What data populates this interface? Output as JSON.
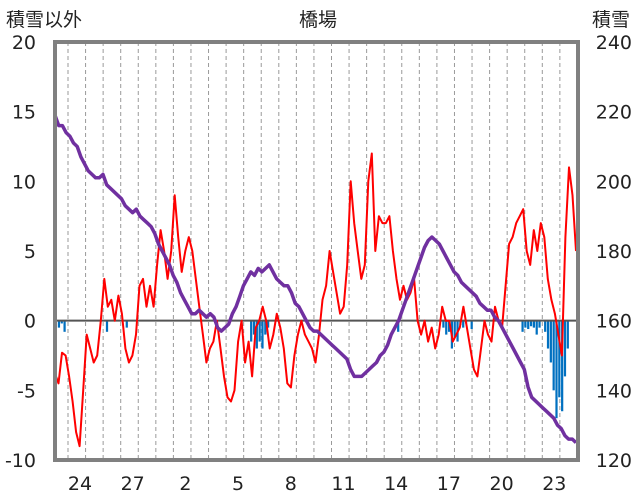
{
  "chart_data": {
    "type": "line",
    "title": "橋場",
    "ylabel_left": "積雪以外",
    "ylabel_right": "積雪",
    "ylim_left": [
      -10,
      20
    ],
    "ylim_right": [
      120,
      240
    ],
    "yticks_left": [
      "20",
      "15",
      "10",
      "5",
      "0",
      "-5",
      "-10"
    ],
    "yticks_right": [
      "240",
      "220",
      "200",
      "180",
      "160",
      "140",
      "120"
    ],
    "xticks": [
      "24",
      "27",
      "2",
      "5",
      "8",
      "11",
      "14",
      "17",
      "20",
      "23"
    ],
    "grid": "vertical-dashed",
    "colors": {
      "temperature": "#ff0000",
      "snow_depth": "#7030a0",
      "precipitation": "#0070c0",
      "frame": "#808080",
      "zero_line": "#555555"
    },
    "series": [
      {
        "key": "temperature",
        "axis": "left",
        "values": [
          -3.8,
          -4.5,
          -2.3,
          -2.5,
          -4.0,
          -5.8,
          -8.0,
          -9.0,
          -5.0,
          -1.0,
          -2.0,
          -3.0,
          -2.5,
          0.0,
          3.0,
          1.0,
          1.5,
          0.0,
          1.8,
          0.5,
          -2.0,
          -3.0,
          -2.5,
          -1.0,
          2.5,
          3.0,
          1.0,
          2.5,
          1.0,
          4.0,
          6.5,
          5.0,
          3.0,
          5.0,
          9.0,
          6.0,
          3.5,
          5.0,
          6.0,
          5.0,
          3.0,
          1.0,
          -1.0,
          -3.0,
          -2.0,
          -1.5,
          0.0,
          -2.0,
          -4.0,
          -5.5,
          -5.8,
          -5.0,
          -1.5,
          0.0,
          -3.0,
          -1.5,
          -4.0,
          -0.5,
          0.0,
          1.0,
          0.0,
          -2.0,
          -1.0,
          0.5,
          -0.5,
          -2.0,
          -4.5,
          -4.8,
          -2.5,
          -1.0,
          0.0,
          -1.0,
          -1.5,
          -2.0,
          -3.0,
          -1.0,
          1.5,
          2.5,
          5.0,
          3.5,
          2.0,
          0.5,
          1.0,
          4.0,
          10.0,
          7.0,
          5.0,
          3.0,
          4.0,
          10.0,
          12.0,
          5.0,
          7.5,
          7.0,
          7.0,
          7.5,
          5.0,
          3.0,
          1.5,
          2.5,
          1.5,
          2.0,
          3.0,
          0.0,
          -1.0,
          0.0,
          -1.5,
          -0.5,
          -2.0,
          -1.0,
          1.0,
          0.0,
          0.0,
          -1.5,
          -1.0,
          -0.5,
          1.0,
          -0.5,
          -2.0,
          -3.5,
          -4.0,
          -2.0,
          0.0,
          -1.0,
          -1.5,
          1.0,
          0.0,
          -0.5,
          2.5,
          5.5,
          6.0,
          7.0,
          7.5,
          8.0,
          5.0,
          4.0,
          6.5,
          5.0,
          7.0,
          6.0,
          3.0,
          1.5,
          0.5,
          -1.0,
          -2.5,
          6.0,
          11.0,
          9.0,
          5.0
        ],
        "x_start": 22.3,
        "x_end": 25.1
      },
      {
        "key": "snow_depth",
        "axis": "right",
        "values": [
          219,
          216,
          216,
          214,
          213,
          211,
          210,
          207,
          205,
          203,
          202,
          201,
          201,
          202,
          199,
          198,
          197,
          196,
          195,
          193,
          192,
          191,
          192,
          190,
          189,
          188,
          187,
          185,
          182,
          180,
          178,
          176,
          173,
          171,
          168,
          166,
          164,
          162,
          162,
          163,
          162,
          161,
          162,
          161,
          158,
          157,
          158,
          159,
          162,
          164,
          167,
          170,
          172,
          174,
          173,
          175,
          174,
          175,
          176,
          174,
          172,
          171,
          170,
          170,
          168,
          165,
          164,
          162,
          160,
          158,
          157,
          157,
          156,
          155,
          154,
          153,
          152,
          151,
          150,
          149,
          146,
          144,
          144,
          144,
          145,
          146,
          147,
          148,
          150,
          151,
          153,
          156,
          158,
          160,
          163,
          166,
          169,
          172,
          175,
          178,
          181,
          183,
          184,
          183,
          182,
          180,
          178,
          176,
          174,
          173,
          171,
          170,
          169,
          168,
          167,
          165,
          164,
          163,
          163,
          161,
          160,
          158,
          156,
          154,
          152,
          150,
          148,
          146,
          141,
          138,
          137,
          136,
          135,
          134,
          133,
          132,
          130,
          129,
          127,
          126,
          126,
          125
        ],
        "x_start": 22.3,
        "x_end": 25.1
      }
    ],
    "precipitation": {
      "axis": "left",
      "start": 22.3,
      "step": 0.25,
      "values": [
        0,
        -0.5,
        -0.2,
        -0.8,
        0,
        0,
        0,
        0,
        0,
        0,
        0,
        0,
        0,
        0,
        0,
        0,
        0,
        0,
        -0.8,
        0,
        0,
        0,
        0,
        0,
        0,
        -0.5,
        0,
        0,
        0,
        0,
        0,
        0,
        0,
        0,
        0,
        0,
        0,
        0,
        0,
        0,
        0,
        0,
        0,
        0,
        0,
        0,
        0,
        0,
        0,
        0,
        0,
        0,
        0,
        0,
        0,
        0,
        0,
        0,
        0,
        0,
        0,
        0,
        0,
        0,
        0,
        0,
        0,
        0,
        0,
        -1.5,
        -1.0,
        -2.0,
        -1.5,
        -2.0,
        -1.0,
        -0.5,
        0,
        0,
        0,
        0,
        0,
        0,
        0,
        0,
        0,
        0,
        0,
        0,
        0,
        0,
        0,
        0,
        0,
        0,
        0,
        0,
        0,
        0,
        0,
        0,
        0,
        0,
        0,
        0,
        0,
        0,
        0,
        0,
        0,
        0,
        0,
        0,
        0,
        0,
        0,
        0,
        0,
        0,
        0,
        0,
        0,
        -0.8,
        0,
        0,
        0,
        0,
        0,
        0,
        0,
        0,
        0,
        0,
        0,
        0,
        0,
        0,
        0,
        -0.5,
        -1.0,
        -0.8,
        -2.0,
        -1.2,
        -1.5,
        -0.3,
        -0.5,
        -0.2,
        0,
        -0.6,
        0,
        0,
        0,
        0,
        0,
        0,
        0,
        0,
        0,
        0,
        0,
        0,
        0,
        0,
        0,
        0,
        0,
        -0.8,
        -0.5,
        -0.6,
        -0.4,
        -0.5,
        -1.0,
        -0.5,
        0,
        -0.8,
        -2.0,
        -3.0,
        -5.0,
        -7.0,
        -5.5,
        -6.5,
        -4.0,
        -2.0,
        0,
        0,
        0
      ]
    }
  }
}
